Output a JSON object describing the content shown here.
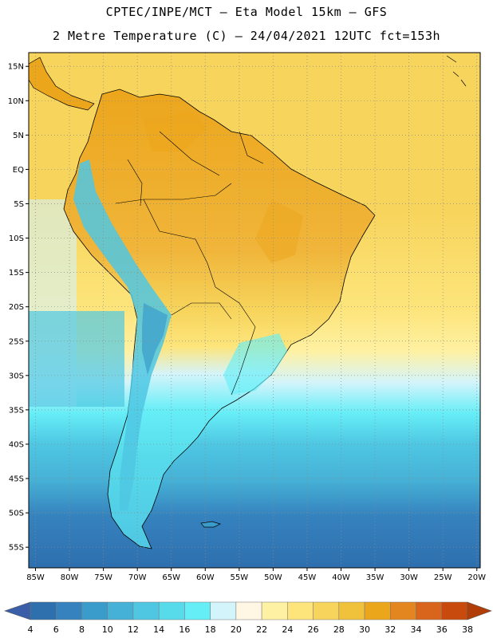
{
  "header": {
    "line1": "CPTEC/INPE/MCT –  Eta Model 15km – GFS",
    "line2": "2 Metre Temperature (C) – 24/04/2021 12UTC fct=153h"
  },
  "axes": {
    "lat_labels": [
      "15N",
      "10N",
      "5N",
      "EQ",
      "5S",
      "10S",
      "15S",
      "20S",
      "25S",
      "30S",
      "35S",
      "40S",
      "45S",
      "50S",
      "55S"
    ],
    "lat_values": [
      15,
      10,
      5,
      0,
      -5,
      -10,
      -15,
      -20,
      -25,
      -30,
      -35,
      -40,
      -45,
      -50,
      -55
    ],
    "lon_labels": [
      "85W",
      "80W",
      "75W",
      "70W",
      "65W",
      "60W",
      "55W",
      "50W",
      "45W",
      "40W",
      "35W",
      "30W",
      "25W",
      "20W"
    ],
    "lon_values": [
      -85,
      -80,
      -75,
      -70,
      -65,
      -60,
      -55,
      -50,
      -45,
      -40,
      -35,
      -30,
      -25,
      -20
    ],
    "lat_range": [
      -58,
      17
    ],
    "lon_range": [
      -86,
      -19.5
    ]
  },
  "colorbar": {
    "labels": [
      "4",
      "6",
      "8",
      "10",
      "12",
      "14",
      "16",
      "18",
      "20",
      "22",
      "24",
      "26",
      "28",
      "30",
      "32",
      "34",
      "36",
      "38"
    ],
    "values": [
      4,
      6,
      8,
      10,
      12,
      14,
      16,
      18,
      20,
      22,
      24,
      26,
      28,
      30,
      32,
      34,
      36,
      38
    ],
    "colors": {
      "below_4": "#3a5fa8",
      "4-6": "#2e6fae",
      "6-8": "#3582be",
      "8-10": "#3a9ccb",
      "10-12": "#46b1d6",
      "12-14": "#4fc7e3",
      "14-16": "#57dbeb",
      "16-18": "#66eef7",
      "18-20": "#d4f4fb",
      "20-22": "#fff6e3",
      "22-24": "#fff1a3",
      "24-26": "#fde57c",
      "26-28": "#f7d45b",
      "28-30": "#f0c23c",
      "30-32": "#eca61c",
      "32-34": "#e4861f",
      "34-36": "#d9641c",
      "36-38": "#c84a0c",
      "above_38": "#b13d07"
    }
  }
}
